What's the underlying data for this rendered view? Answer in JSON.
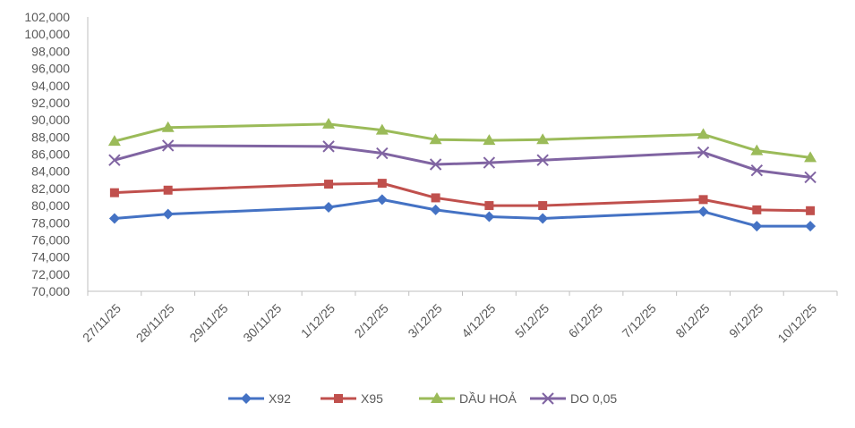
{
  "chart_data": {
    "type": "line",
    "title": "",
    "xlabel": "",
    "ylabel": "",
    "ylim": [
      70000,
      102000
    ],
    "y_tick_step": 2000,
    "grid": false,
    "legend_position": "bottom",
    "categories": [
      "27/11/25",
      "28/11/25",
      "29/11/25",
      "30/11/25",
      "1/12/25",
      "2/12/25",
      "3/12/25",
      "4/12/25",
      "5/12/25",
      "6/12/25",
      "7/12/25",
      "8/12/25",
      "9/12/25",
      "10/12/25"
    ],
    "y_tick_labels": [
      "70,000",
      "72,000",
      "74,000",
      "76,000",
      "78,000",
      "80,000",
      "82,000",
      "84,000",
      "86,000",
      "88,000",
      "90,000",
      "92,000",
      "94,000",
      "96,000",
      "98,000",
      "100,000",
      "102,000"
    ],
    "series": [
      {
        "name": "X92",
        "color": "#4472C4",
        "marker": "diamond",
        "values": [
          {
            "x": "27/11/25",
            "y": 78500
          },
          {
            "x": "28/11/25",
            "y": 79000
          },
          {
            "x": "1/12/25",
            "y": 79800
          },
          {
            "x": "2/12/25",
            "y": 80700
          },
          {
            "x": "3/12/25",
            "y": 79500
          },
          {
            "x": "4/12/25",
            "y": 78700
          },
          {
            "x": "5/12/25",
            "y": 78500
          },
          {
            "x": "8/12/25",
            "y": 79300
          },
          {
            "x": "9/12/25",
            "y": 77600
          },
          {
            "x": "10/12/25",
            "y": 77600
          }
        ]
      },
      {
        "name": "X95",
        "color": "#C0504D",
        "marker": "square",
        "values": [
          {
            "x": "27/11/25",
            "y": 81500
          },
          {
            "x": "28/11/25",
            "y": 81800
          },
          {
            "x": "1/12/25",
            "y": 82500
          },
          {
            "x": "2/12/25",
            "y": 82600
          },
          {
            "x": "3/12/25",
            "y": 80900
          },
          {
            "x": "4/12/25",
            "y": 80000
          },
          {
            "x": "5/12/25",
            "y": 80000
          },
          {
            "x": "8/12/25",
            "y": 80700
          },
          {
            "x": "9/12/25",
            "y": 79500
          },
          {
            "x": "10/12/25",
            "y": 79400
          }
        ]
      },
      {
        "name": "DẦU HOẢ",
        "color": "#9BBB59",
        "marker": "triangle",
        "values": [
          {
            "x": "27/11/25",
            "y": 87500
          },
          {
            "x": "28/11/25",
            "y": 89100
          },
          {
            "x": "1/12/25",
            "y": 89500
          },
          {
            "x": "2/12/25",
            "y": 88800
          },
          {
            "x": "3/12/25",
            "y": 87700
          },
          {
            "x": "4/12/25",
            "y": 87600
          },
          {
            "x": "5/12/25",
            "y": 87700
          },
          {
            "x": "8/12/25",
            "y": 88300
          },
          {
            "x": "9/12/25",
            "y": 86400
          },
          {
            "x": "10/12/25",
            "y": 85600
          }
        ]
      },
      {
        "name": "DO 0,05",
        "color": "#8064A2",
        "marker": "x",
        "values": [
          {
            "x": "27/11/25",
            "y": 85300
          },
          {
            "x": "28/11/25",
            "y": 87000
          },
          {
            "x": "1/12/25",
            "y": 86900
          },
          {
            "x": "2/12/25",
            "y": 86100
          },
          {
            "x": "3/12/25",
            "y": 84800
          },
          {
            "x": "4/12/25",
            "y": 85000
          },
          {
            "x": "5/12/25",
            "y": 85300
          },
          {
            "x": "8/12/25",
            "y": 86200
          },
          {
            "x": "9/12/25",
            "y": 84100
          },
          {
            "x": "10/12/25",
            "y": 83300
          }
        ]
      }
    ]
  }
}
